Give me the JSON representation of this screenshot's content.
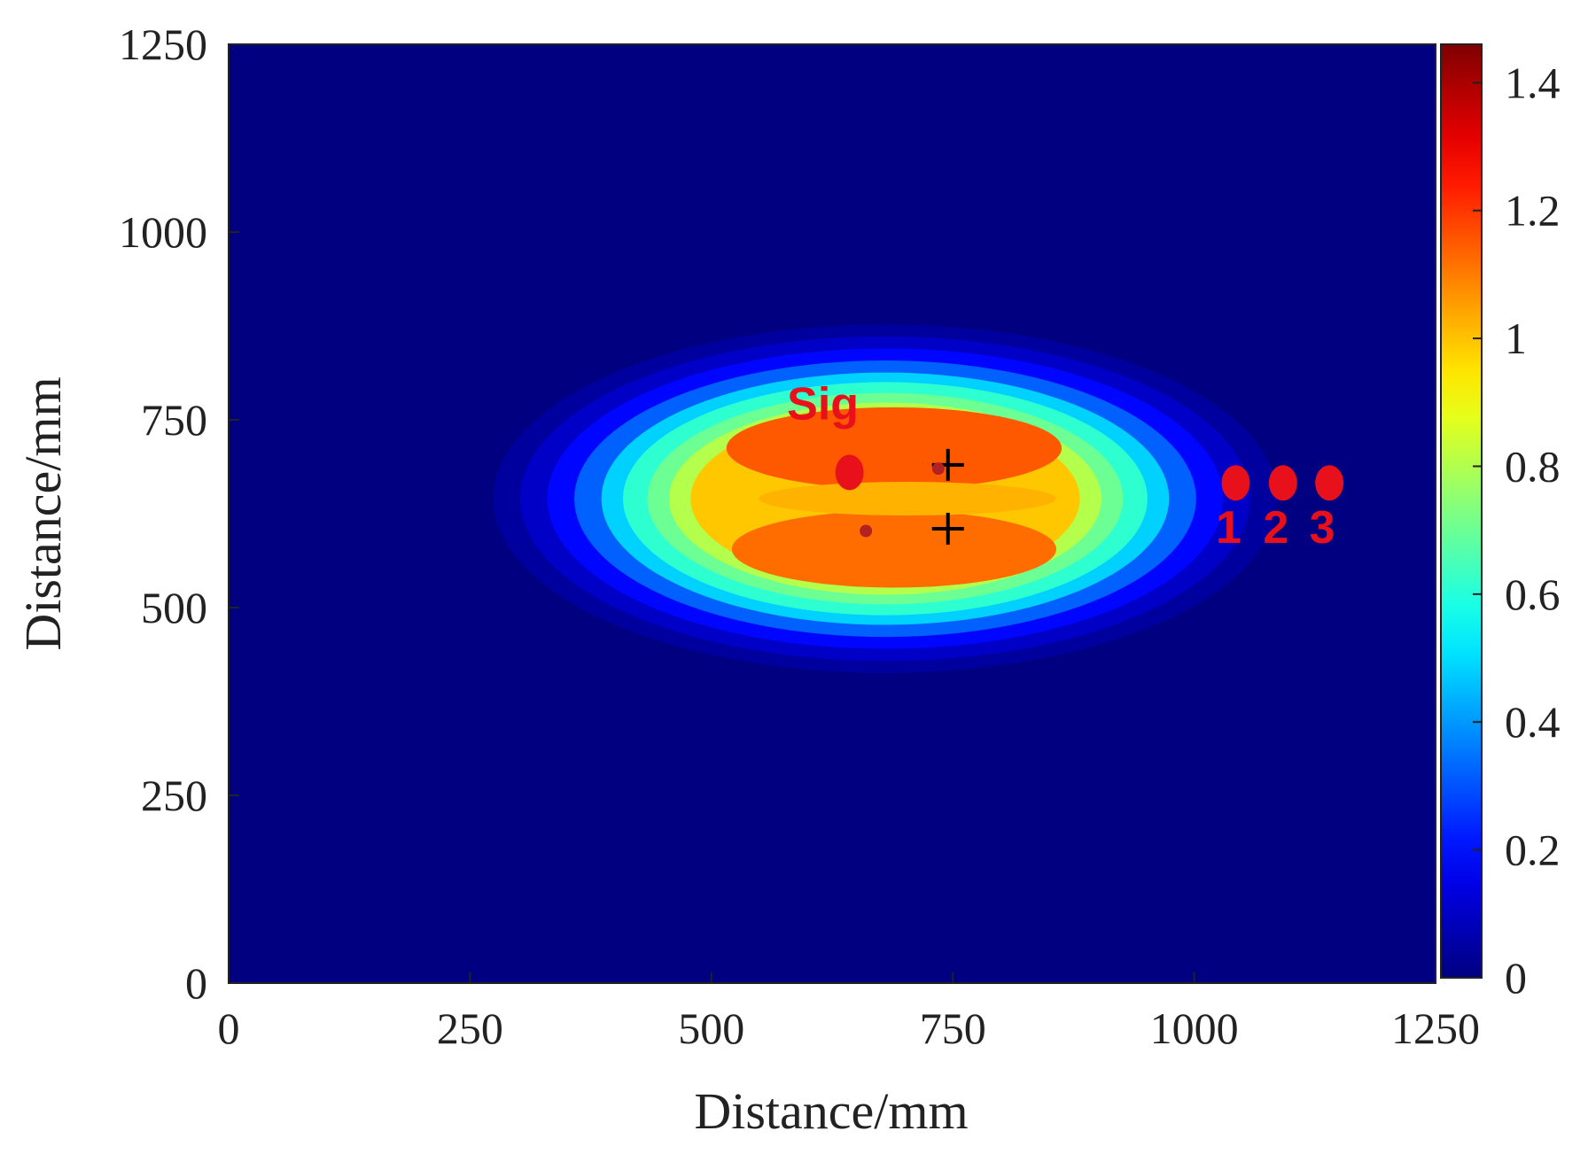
{
  "chart_data": {
    "type": "heatmap",
    "title": "",
    "xlabel": "Distance/mm",
    "ylabel": "Distance/mm",
    "xlim": [
      0,
      1250
    ],
    "ylim": [
      0,
      1250
    ],
    "xticks": [
      "0",
      "250",
      "500",
      "750",
      "1000",
      "1250"
    ],
    "yticks": [
      "0",
      "250",
      "500",
      "750",
      "1000",
      "1250"
    ],
    "xtick_values": [
      0,
      250,
      500,
      750,
      1000,
      1250
    ],
    "ytick_values": [
      0,
      250,
      500,
      750,
      1000,
      1250
    ],
    "colorbar": {
      "range": [
        0,
        1.46
      ],
      "ticks": [
        "0",
        "0.2",
        "0.4",
        "0.6",
        "0.8",
        "1",
        "1.2",
        "1.4"
      ],
      "tick_values": [
        0,
        0.2,
        0.4,
        0.6,
        0.8,
        1.0,
        1.2,
        1.4
      ],
      "colormap": "jet"
    },
    "field": {
      "description_values": "elliptical region centered near (680, 645) mm, semi-axes about 280 mm (x) and 160 mm (y), peak value about 1.15, background 0",
      "center": [
        680,
        645
      ],
      "semi_axes": [
        280,
        160
      ],
      "peak": 1.15,
      "background": 0
    },
    "markers": [
      {
        "type": "dot",
        "label": "Sig",
        "x": 643,
        "y": 680,
        "color": "#e8101a"
      },
      {
        "type": "dot",
        "label": "1",
        "x": 1043,
        "y": 666,
        "color": "#e8101a"
      },
      {
        "type": "dot",
        "label": "2",
        "x": 1092,
        "y": 666,
        "color": "#e8101a"
      },
      {
        "type": "dot",
        "label": "3",
        "x": 1140,
        "y": 666,
        "color": "#e8101a"
      },
      {
        "type": "cross",
        "x": 745,
        "y": 690,
        "color": "#000000"
      },
      {
        "type": "cross",
        "x": 745,
        "y": 605,
        "color": "#000000"
      },
      {
        "type": "small-dot",
        "x": 735,
        "y": 685,
        "color": "#b22222"
      },
      {
        "type": "small-dot",
        "x": 660,
        "y": 602,
        "color": "#b22222"
      }
    ],
    "annotations": [
      "Sig",
      "1",
      "2",
      "3"
    ],
    "grid": false,
    "legend": "none"
  }
}
